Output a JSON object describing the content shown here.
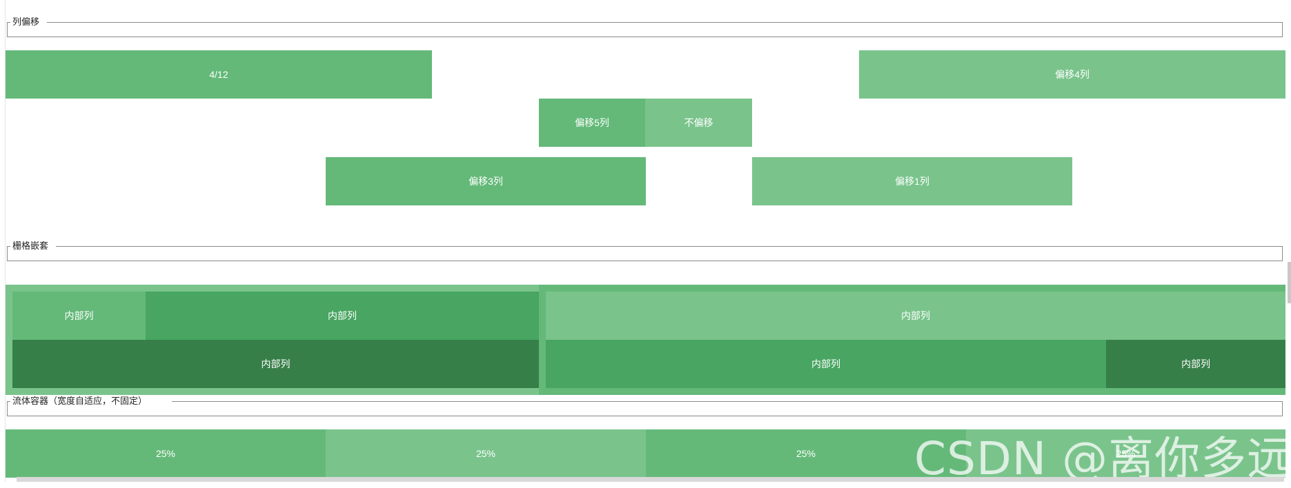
{
  "sections": {
    "offset_title": "列偏移",
    "nesting_title": "栅格嵌套",
    "fluid_title": "流体容器（宽度自适应，不固定）"
  },
  "offset_demo": {
    "row1": [
      "4/12",
      "偏移4列"
    ],
    "row2": [
      "偏移5列",
      "不偏移"
    ],
    "row3": [
      "偏移3列",
      "偏移1列"
    ]
  },
  "nesting_demo": {
    "inner_label": "内部列"
  },
  "fluid_demo": {
    "cells": [
      "25%",
      "25%",
      "25%",
      "25%"
    ]
  },
  "watermark": "CSDN @离你多远",
  "colors": {
    "green_light": "#7ac48c",
    "green_mid": "#64b979",
    "green_dark": "#48a562",
    "green_darker": "#377f49"
  }
}
